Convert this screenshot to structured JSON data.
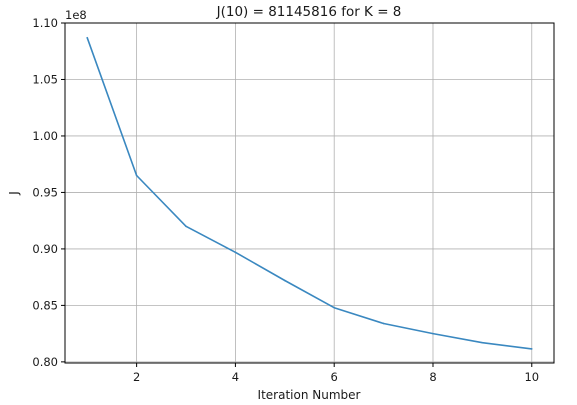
{
  "chart_data": {
    "type": "line",
    "title": "J(10) = 81145816 for K = 8",
    "xlabel": "Iteration Number",
    "ylabel": "J",
    "y_offset_label": "1e8",
    "x_ticks": [
      "2",
      "4",
      "6",
      "8",
      "10"
    ],
    "y_ticks": [
      "0.80",
      "0.85",
      "0.90",
      "0.95",
      "1.00",
      "1.05",
      "1.10"
    ],
    "xlim": [
      0.55,
      10.45
    ],
    "ylim": [
      0.799,
      1.1
    ],
    "grid": true,
    "series": [
      {
        "color": "#3a88c0",
        "x": [
          1,
          2,
          3,
          4,
          5,
          6,
          7,
          8,
          9,
          10
        ],
        "y": [
          1.087,
          0.965,
          0.92,
          0.897,
          0.872,
          0.848,
          0.834,
          0.825,
          0.817,
          0.8115
        ]
      }
    ]
  }
}
